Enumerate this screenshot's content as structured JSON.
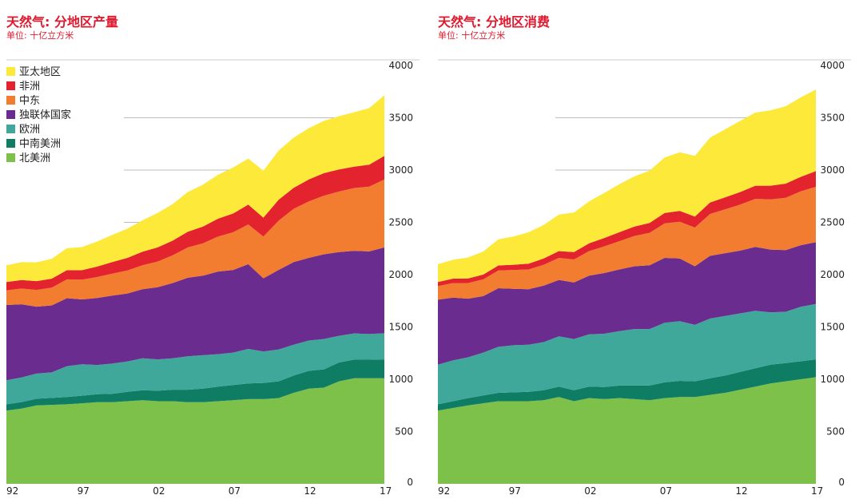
{
  "chart_data": [
    {
      "type": "area",
      "stacked": true,
      "title": "天然气: 分地区产量",
      "subtitle": "单位: 十亿立方米",
      "x": [
        1992,
        1993,
        1994,
        1995,
        1996,
        1997,
        1998,
        1999,
        2000,
        2001,
        2002,
        2003,
        2004,
        2005,
        2006,
        2007,
        2008,
        2009,
        2010,
        2011,
        2012,
        2013,
        2014,
        2015,
        2016,
        2017
      ],
      "x_tick_labels": [
        {
          "x": 1992,
          "label": "92"
        },
        {
          "x": 1997,
          "label": "97"
        },
        {
          "x": 2002,
          "label": "02"
        },
        {
          "x": 2007,
          "label": "07"
        },
        {
          "x": 2012,
          "label": "12"
        },
        {
          "x": 2017,
          "label": "17"
        }
      ],
      "ylim": [
        0,
        4000
      ],
      "yticks": [
        0,
        500,
        1000,
        1500,
        2000,
        2500,
        3000,
        3500,
        4000
      ],
      "series": [
        {
          "name": "北美洲",
          "color": "#7dc04a",
          "values": [
            700,
            720,
            750,
            755,
            760,
            770,
            780,
            780,
            790,
            800,
            790,
            790,
            780,
            780,
            790,
            800,
            810,
            810,
            820,
            870,
            910,
            920,
            980,
            1010,
            1010,
            1010
          ]
        },
        {
          "name": "中南美洲",
          "color": "#0e7d64",
          "values": [
            60,
            62,
            64,
            66,
            70,
            73,
            77,
            80,
            90,
            95,
            100,
            110,
            120,
            130,
            140,
            145,
            150,
            155,
            160,
            165,
            170,
            175,
            180,
            178,
            177,
            180
          ]
        },
        {
          "name": "欧洲",
          "color": "#3fa89b",
          "values": [
            230,
            235,
            240,
            245,
            295,
            300,
            280,
            290,
            290,
            305,
            300,
            300,
            320,
            320,
            310,
            310,
            330,
            300,
            305,
            295,
            290,
            290,
            255,
            250,
            245,
            250
          ]
        },
        {
          "name": "独联体国家",
          "color": "#6a2d8f",
          "values": [
            720,
            700,
            640,
            640,
            650,
            620,
            640,
            650,
            650,
            660,
            690,
            720,
            750,
            760,
            790,
            790,
            810,
            700,
            760,
            790,
            790,
            810,
            800,
            790,
            790,
            820
          ]
        },
        {
          "name": "中东",
          "color": "#f27c30",
          "values": [
            140,
            150,
            160,
            170,
            180,
            190,
            200,
            210,
            220,
            230,
            245,
            265,
            290,
            310,
            335,
            360,
            380,
            400,
            470,
            510,
            540,
            560,
            580,
            600,
            620,
            650
          ]
        },
        {
          "name": "非洲",
          "color": "#e3232e",
          "values": [
            80,
            82,
            84,
            86,
            88,
            90,
            100,
            110,
            120,
            130,
            135,
            140,
            150,
            160,
            170,
            180,
            190,
            180,
            200,
            200,
            210,
            215,
            210,
            205,
            210,
            225
          ]
        },
        {
          "name": "亚太地区",
          "color": "#fce93a",
          "values": [
            160,
            170,
            180,
            190,
            210,
            220,
            240,
            260,
            280,
            300,
            330,
            350,
            380,
            400,
            420,
            440,
            440,
            450,
            470,
            480,
            490,
            500,
            510,
            520,
            540,
            580
          ]
        }
      ]
    },
    {
      "type": "area",
      "stacked": true,
      "title": "天然气: 分地区消费",
      "subtitle": "单位: 十亿立方米",
      "x": [
        1992,
        1993,
        1994,
        1995,
        1996,
        1997,
        1998,
        1999,
        2000,
        2001,
        2002,
        2003,
        2004,
        2005,
        2006,
        2007,
        2008,
        2009,
        2010,
        2011,
        2012,
        2013,
        2014,
        2015,
        2016,
        2017
      ],
      "x_tick_labels": [
        {
          "x": 1992,
          "label": "92"
        },
        {
          "x": 1997,
          "label": "97"
        },
        {
          "x": 2002,
          "label": "02"
        },
        {
          "x": 2007,
          "label": "07"
        },
        {
          "x": 2012,
          "label": "12"
        },
        {
          "x": 2017,
          "label": "17"
        }
      ],
      "ylim": [
        0,
        4000
      ],
      "yticks": [
        0,
        500,
        1000,
        1500,
        2000,
        2500,
        3000,
        3500,
        4000
      ],
      "series": [
        {
          "name": "北美洲",
          "color": "#7dc04a",
          "values": [
            700,
            725,
            750,
            770,
            790,
            790,
            790,
            800,
            830,
            790,
            820,
            810,
            820,
            810,
            800,
            820,
            830,
            830,
            850,
            870,
            900,
            930,
            960,
            980,
            1000,
            1020
          ]
        },
        {
          "name": "中南美洲",
          "color": "#0e7d64",
          "values": [
            60,
            65,
            70,
            75,
            80,
            85,
            90,
            95,
            100,
            105,
            110,
            115,
            120,
            130,
            140,
            150,
            155,
            150,
            160,
            165,
            170,
            175,
            180,
            175,
            172,
            170
          ]
        },
        {
          "name": "欧洲",
          "color": "#3fa89b",
          "values": [
            380,
            390,
            390,
            410,
            440,
            450,
            450,
            460,
            480,
            490,
            500,
            510,
            520,
            540,
            540,
            570,
            570,
            540,
            570,
            570,
            560,
            550,
            500,
            490,
            520,
            530
          ]
        },
        {
          "name": "独联体国家",
          "color": "#6a2d8f",
          "values": [
            620,
            600,
            560,
            540,
            560,
            540,
            530,
            540,
            540,
            540,
            560,
            580,
            590,
            600,
            610,
            620,
            600,
            560,
            600,
            600,
            600,
            610,
            600,
            590,
            590,
            590
          ]
        },
        {
          "name": "中东",
          "color": "#f27c30",
          "values": [
            130,
            140,
            150,
            160,
            170,
            180,
            190,
            200,
            210,
            220,
            235,
            255,
            270,
            290,
            310,
            330,
            350,
            370,
            400,
            420,
            440,
            460,
            480,
            500,
            515,
            530
          ]
        },
        {
          "name": "非洲",
          "color": "#e3232e",
          "values": [
            40,
            42,
            44,
            46,
            48,
            50,
            55,
            60,
            65,
            70,
            75,
            80,
            85,
            90,
            95,
            100,
            105,
            105,
            110,
            115,
            120,
            125,
            130,
            135,
            138,
            150
          ]
        },
        {
          "name": "亚太地区",
          "color": "#fce93a",
          "values": [
            170,
            180,
            200,
            220,
            250,
            270,
            300,
            320,
            350,
            380,
            400,
            430,
            460,
            480,
            500,
            530,
            560,
            580,
            620,
            650,
            680,
            700,
            720,
            740,
            760,
            780
          ]
        }
      ]
    }
  ]
}
